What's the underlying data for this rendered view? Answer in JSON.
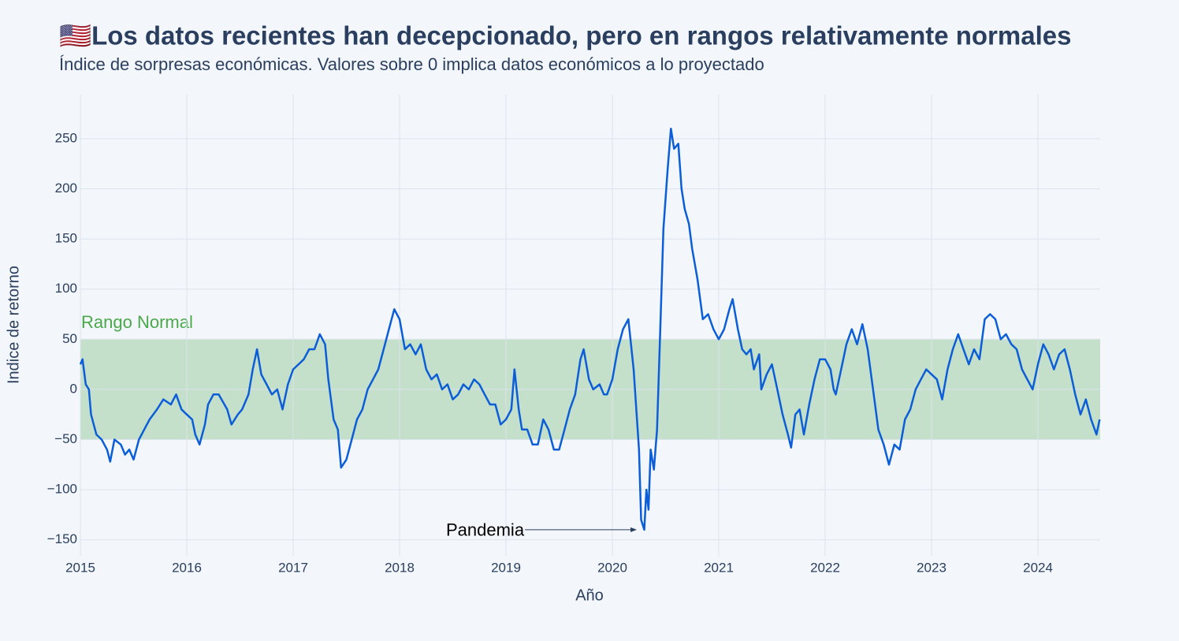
{
  "chart_data": {
    "type": "line",
    "title": "🇺🇸Los datos recientes han decepcionado, pero en rangos relativamente normales",
    "subtitle": "Índice de sorpresas económicas. Valores sobre 0 implica datos económicos a lo proyectado",
    "x_label": "Año",
    "y_label": "Indice de retorno",
    "x": [
      2015.0,
      2015.02,
      2015.05,
      2015.08,
      2015.1,
      2015.15,
      2015.2,
      2015.25,
      2015.28,
      2015.32,
      2015.38,
      2015.42,
      2015.46,
      2015.5,
      2015.55,
      2015.6,
      2015.65,
      2015.72,
      2015.78,
      2015.85,
      2015.9,
      2015.95,
      2016.0,
      2016.05,
      2016.08,
      2016.12,
      2016.17,
      2016.2,
      2016.25,
      2016.3,
      2016.38,
      2016.42,
      2016.48,
      2016.52,
      2016.58,
      2016.62,
      2016.66,
      2016.7,
      2016.75,
      2016.8,
      2016.85,
      2016.9,
      2016.95,
      2017.0,
      2017.05,
      2017.1,
      2017.15,
      2017.2,
      2017.25,
      2017.3,
      2017.33,
      2017.38,
      2017.42,
      2017.45,
      2017.5,
      2017.55,
      2017.6,
      2017.65,
      2017.7,
      2017.75,
      2017.8,
      2017.85,
      2017.9,
      2017.95,
      2018.0,
      2018.05,
      2018.1,
      2018.15,
      2018.2,
      2018.25,
      2018.3,
      2018.35,
      2018.4,
      2018.45,
      2018.5,
      2018.55,
      2018.6,
      2018.65,
      2018.7,
      2018.75,
      2018.8,
      2018.85,
      2018.9,
      2018.95,
      2019.0,
      2019.05,
      2019.08,
      2019.12,
      2019.15,
      2019.2,
      2019.25,
      2019.3,
      2019.35,
      2019.4,
      2019.45,
      2019.5,
      2019.55,
      2019.6,
      2019.65,
      2019.7,
      2019.73,
      2019.78,
      2019.82,
      2019.88,
      2019.92,
      2019.95,
      2020.0,
      2020.05,
      2020.1,
      2020.15,
      2020.2,
      2020.25,
      2020.27,
      2020.3,
      2020.32,
      2020.34,
      2020.36,
      2020.39,
      2020.42,
      2020.45,
      2020.48,
      2020.52,
      2020.55,
      2020.58,
      2020.62,
      2020.65,
      2020.68,
      2020.72,
      2020.75,
      2020.8,
      2020.85,
      2020.9,
      2020.95,
      2021.0,
      2021.05,
      2021.1,
      2021.13,
      2021.18,
      2021.22,
      2021.26,
      2021.3,
      2021.33,
      2021.38,
      2021.4,
      2021.45,
      2021.5,
      2021.55,
      2021.6,
      2021.65,
      2021.68,
      2021.72,
      2021.76,
      2021.8,
      2021.85,
      2021.9,
      2021.95,
      2022.0,
      2022.05,
      2022.08,
      2022.1,
      2022.15,
      2022.2,
      2022.25,
      2022.3,
      2022.35,
      2022.4,
      2022.45,
      2022.5,
      2022.55,
      2022.6,
      2022.65,
      2022.7,
      2022.75,
      2022.8,
      2022.85,
      2022.9,
      2022.95,
      2023.0,
      2023.05,
      2023.1,
      2023.15,
      2023.2,
      2023.25,
      2023.3,
      2023.35,
      2023.4,
      2023.45,
      2023.5,
      2023.55,
      2023.6,
      2023.65,
      2023.7,
      2023.75,
      2023.8,
      2023.85,
      2023.9,
      2023.95,
      2024.0,
      2024.05,
      2024.1,
      2024.15,
      2024.2,
      2024.25,
      2024.3,
      2024.35,
      2024.4,
      2024.45,
      2024.5,
      2024.55,
      2024.58
    ],
    "values": [
      25,
      30,
      5,
      0,
      -25,
      -45,
      -50,
      -60,
      -72,
      -50,
      -55,
      -65,
      -60,
      -70,
      -50,
      -40,
      -30,
      -20,
      -10,
      -15,
      -5,
      -20,
      -25,
      -30,
      -45,
      -55,
      -35,
      -15,
      -5,
      -5,
      -20,
      -35,
      -25,
      -20,
      -5,
      20,
      40,
      15,
      5,
      -5,
      0,
      -20,
      5,
      20,
      25,
      30,
      40,
      40,
      55,
      45,
      10,
      -30,
      -40,
      -78,
      -70,
      -50,
      -30,
      -20,
      0,
      10,
      20,
      40,
      60,
      80,
      70,
      40,
      45,
      35,
      45,
      20,
      10,
      15,
      0,
      5,
      -10,
      -5,
      5,
      0,
      10,
      5,
      -5,
      -15,
      -15,
      -35,
      -30,
      -20,
      20,
      -20,
      -40,
      -40,
      -55,
      -55,
      -30,
      -40,
      -60,
      -60,
      -40,
      -20,
      -5,
      30,
      40,
      10,
      0,
      5,
      -5,
      -5,
      10,
      40,
      60,
      70,
      20,
      -60,
      -130,
      -140,
      -100,
      -120,
      -60,
      -80,
      -40,
      60,
      160,
      220,
      260,
      240,
      245,
      200,
      180,
      165,
      140,
      110,
      70,
      75,
      60,
      50,
      60,
      80,
      90,
      60,
      40,
      35,
      40,
      20,
      35,
      0,
      15,
      25,
      0,
      -25,
      -45,
      -58,
      -25,
      -20,
      -45,
      -15,
      10,
      30,
      30,
      20,
      0,
      -5,
      20,
      45,
      60,
      45,
      65,
      40,
      0,
      -40,
      -55,
      -75,
      -55,
      -60,
      -30,
      -20,
      0,
      10,
      20,
      15,
      10,
      -10,
      20,
      40,
      55,
      40,
      25,
      40,
      30,
      70,
      75,
      70,
      50,
      55,
      45,
      40,
      20,
      10,
      0,
      25,
      45,
      35,
      20,
      35,
      40,
      20,
      -5,
      -25,
      -10,
      -30,
      -45,
      -30
    ],
    "color": "#0b5ed7",
    "xlim": [
      2015,
      2024.585
    ],
    "xticks": [
      2015,
      2016,
      2017,
      2018,
      2019,
      2020,
      2021,
      2022,
      2023,
      2024
    ],
    "ylim": [
      -166,
      294
    ],
    "yticks": [
      {
        "value": -150,
        "label": "−150"
      },
      {
        "value": -100,
        "label": "−100"
      },
      {
        "value": -50,
        "label": "−50"
      },
      0,
      50,
      100,
      150,
      200,
      250
    ],
    "grid": true,
    "band": {
      "range": [
        -50,
        50
      ],
      "color": "#c4dfca",
      "label": "Rango Normal",
      "label_color": "#4aa84a"
    },
    "annotation": {
      "text": "Pandemia",
      "x": 2020.23,
      "y": -140
    }
  }
}
